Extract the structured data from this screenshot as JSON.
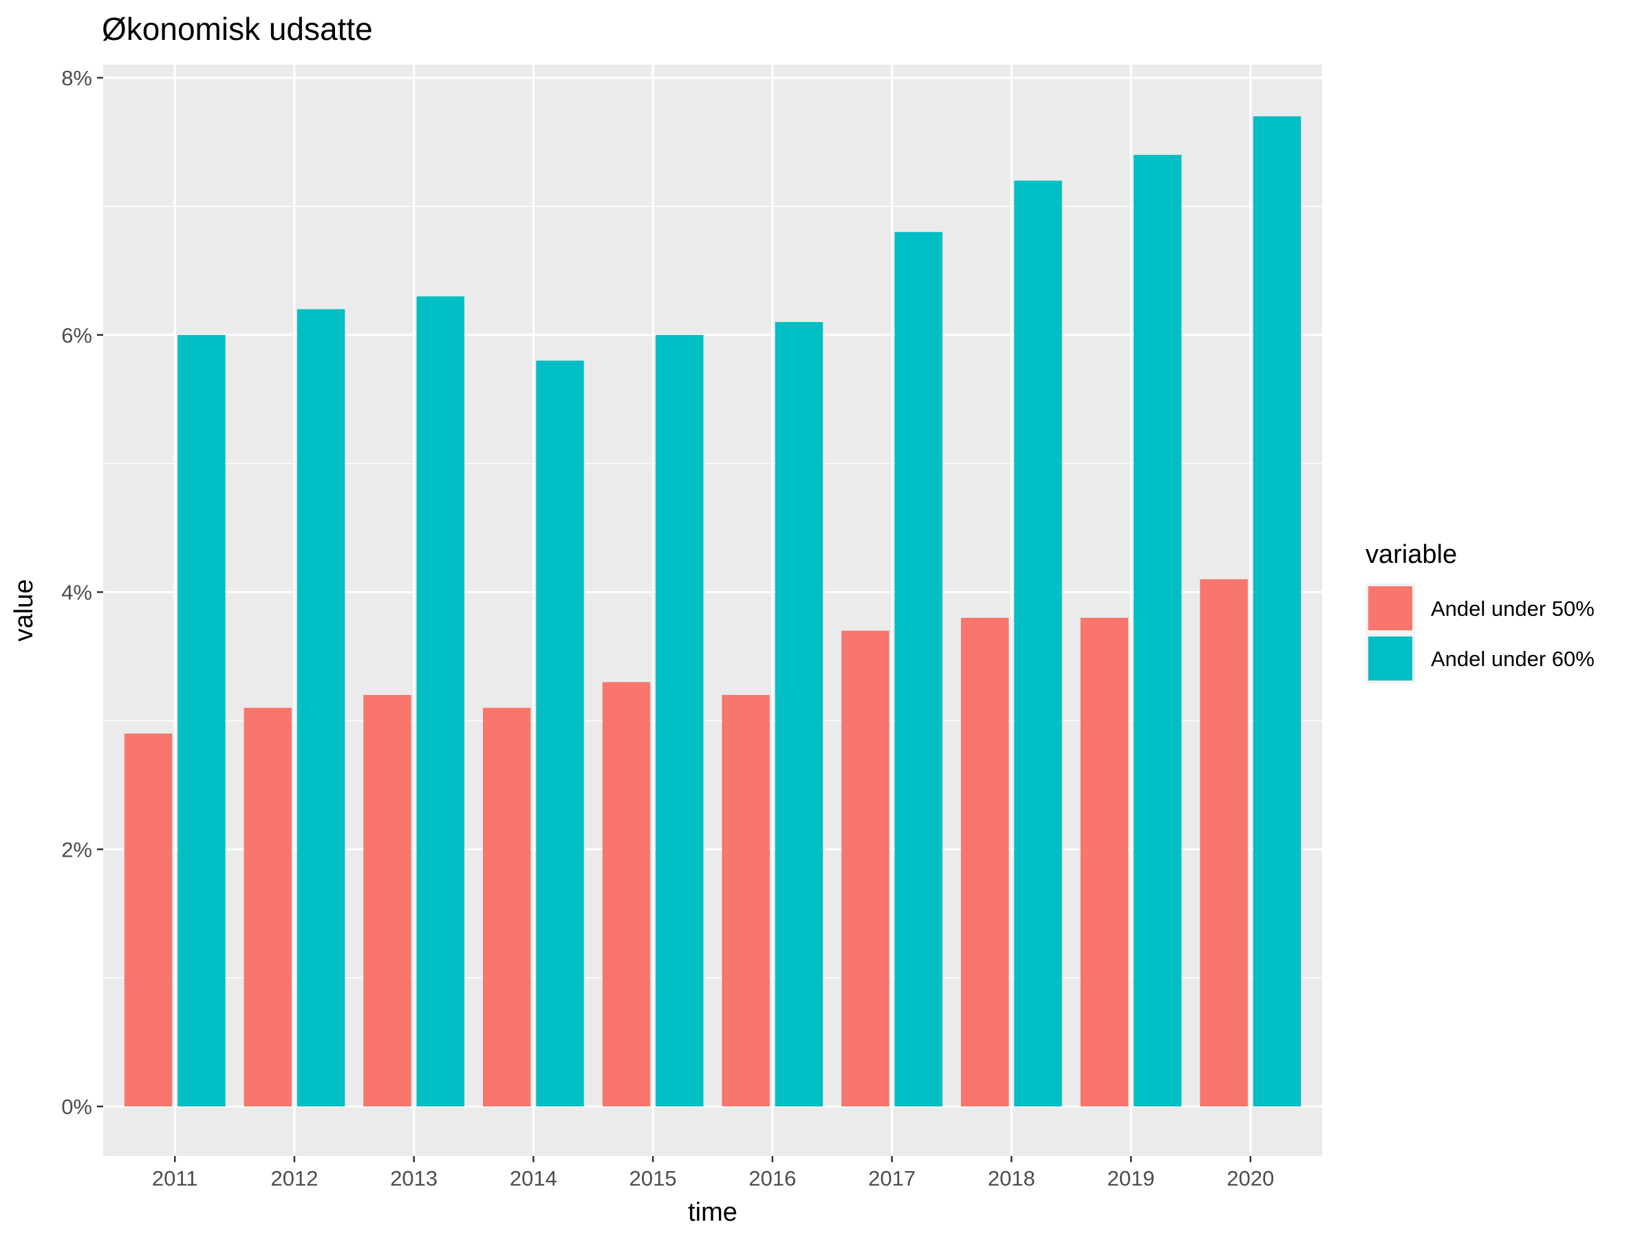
{
  "chart_data": {
    "type": "bar",
    "title": "Økonomisk udsatte",
    "xlabel": "time",
    "ylabel": "value",
    "categories": [
      "2011",
      "2012",
      "2013",
      "2014",
      "2015",
      "2016",
      "2017",
      "2018",
      "2019",
      "2020"
    ],
    "series": [
      {
        "name": "Andel under 50%",
        "color": "#F8766D",
        "values": [
          2.9,
          3.1,
          3.2,
          3.1,
          3.3,
          3.2,
          3.7,
          3.8,
          3.8,
          4.1
        ]
      },
      {
        "name": "Andel under 60%",
        "color": "#00BFC4",
        "values": [
          6.0,
          6.2,
          6.3,
          5.8,
          6.0,
          6.1,
          6.8,
          7.2,
          7.4,
          7.7
        ]
      }
    ],
    "ylim": [
      0,
      8
    ],
    "yticks": [
      "0%",
      "2%",
      "4%",
      "6%",
      "8%"
    ],
    "grid": true,
    "legend": {
      "title": "variable",
      "position": "right"
    },
    "panel_color": "#EBEBEB"
  }
}
